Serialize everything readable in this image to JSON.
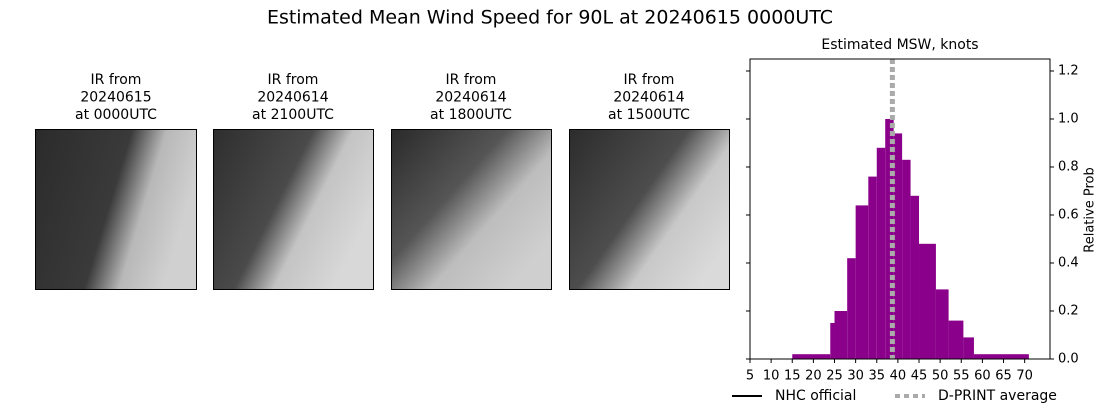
{
  "title": "Estimated Mean Wind Speed for 90L at 20240615 0000UTC",
  "panels": [
    {
      "label": [
        "IR from",
        "20240615",
        "at 0000UTC"
      ]
    },
    {
      "label": [
        "IR from",
        "20240614",
        "at 2100UTC"
      ]
    },
    {
      "label": [
        "IR from",
        "20240614",
        "at 1800UTC"
      ]
    },
    {
      "label": [
        "IR from",
        "20240614",
        "at 1500UTC"
      ]
    }
  ],
  "chart_data": {
    "type": "histogram",
    "title": "Estimated MSW, knots",
    "y_label": "Relative Prob",
    "bins": [
      15,
      24,
      25,
      28,
      30,
      33,
      35,
      37,
      39,
      41,
      43,
      45,
      49,
      52,
      55.5,
      58,
      71
    ],
    "values": [
      0.02,
      0.15,
      0.2,
      0.42,
      0.64,
      0.76,
      0.88,
      1.0,
      0.94,
      0.83,
      0.68,
      0.48,
      0.29,
      0.16,
      0.09,
      0.02
    ],
    "color": "#8b008b",
    "xlim": [
      5,
      76
    ],
    "ylim": [
      0,
      1.25
    ],
    "xticks": [
      5,
      10,
      15,
      20,
      25,
      30,
      35,
      40,
      45,
      50,
      55,
      60,
      65,
      70
    ],
    "yticks": [
      {
        "value": 0,
        "label": "0.0"
      },
      {
        "value": 0.2,
        "label": "0.2"
      },
      {
        "value": 0.4,
        "label": "0.4"
      },
      {
        "value": 0.6,
        "label": "0.6"
      },
      {
        "value": 0.8,
        "label": "0.8"
      },
      {
        "value": 1.0,
        "label": "1.0"
      },
      {
        "value": 1.2,
        "label": "1.2"
      }
    ],
    "legend": [
      {
        "name": "NHC official",
        "color": "#000000",
        "style": "solid"
      },
      {
        "name": "D-PRINT average",
        "color": "#aaaaaa",
        "style": "dotted",
        "value": 38.7
      }
    ]
  }
}
